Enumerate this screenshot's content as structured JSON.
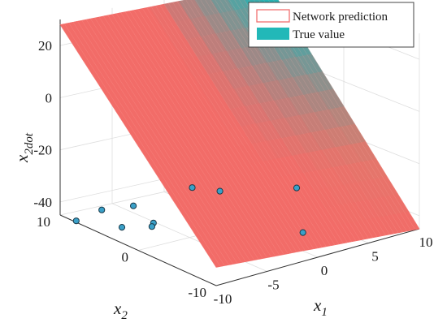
{
  "chart_data": {
    "type": "surface3d",
    "title": "",
    "axes": {
      "x": {
        "label": "x",
        "label_sub": "1",
        "range": [
          -10,
          10
        ],
        "ticks": [
          -10,
          -5,
          0,
          5,
          10
        ],
        "tick_labels": [
          "-10",
          "-5",
          "0",
          "5",
          "10"
        ]
      },
      "y": {
        "label": "x",
        "label_sub": "2",
        "range": [
          -10,
          10
        ],
        "ticks": [
          -10,
          0,
          10
        ],
        "tick_labels": [
          "-10",
          "0",
          "10"
        ]
      },
      "z": {
        "label": "x",
        "label_sub": "2dot",
        "range": [
          -45,
          30
        ],
        "ticks": [
          -40,
          -20,
          0,
          20
        ],
        "tick_labels": [
          "-40",
          "-20",
          "0",
          "20"
        ]
      }
    },
    "grid": true,
    "legend": {
      "placement": "top-right",
      "entries": [
        {
          "label": "Network prediction",
          "style": "mesh-outline",
          "color": "#f07070"
        },
        {
          "label": "True value",
          "style": "filled",
          "color": "#22b8b8"
        }
      ]
    },
    "series": [
      {
        "name": "Network prediction",
        "kind": "surface",
        "corners": [
          {
            "x": -10,
            "y": 10,
            "z": 28
          },
          {
            "x": 10,
            "y": 10,
            "z": 26
          },
          {
            "x": 10,
            "y": -10,
            "z": -45
          },
          {
            "x": -10,
            "y": -10,
            "z": -38
          }
        ]
      },
      {
        "name": "True value",
        "kind": "surface",
        "corners": [
          {
            "x": -10,
            "y": 10,
            "z": 28
          },
          {
            "x": 10,
            "y": 10,
            "z": 26
          },
          {
            "x": 10,
            "y": -10,
            "z": -45
          },
          {
            "x": -10,
            "y": -10,
            "z": -38
          }
        ]
      },
      {
        "name": "training points",
        "kind": "scatter",
        "color": "#3aa0c8",
        "points": [
          {
            "x": -9.8,
            "y": 8.2
          },
          {
            "x": -6.6,
            "y": 9.2
          },
          {
            "x": -7.8,
            "y": 5.0
          },
          {
            "x": -4.0,
            "y": 8.6
          },
          {
            "x": -5.2,
            "y": 4.4
          },
          {
            "x": -5.8,
            "y": 3.8
          },
          {
            "x": 2.4,
            "y": 9.6
          },
          {
            "x": 3.6,
            "y": 7.6
          },
          {
            "x": 8.8,
            "y": 4.6
          },
          {
            "x": 2.6,
            "y": -4.6
          }
        ]
      }
    ]
  }
}
